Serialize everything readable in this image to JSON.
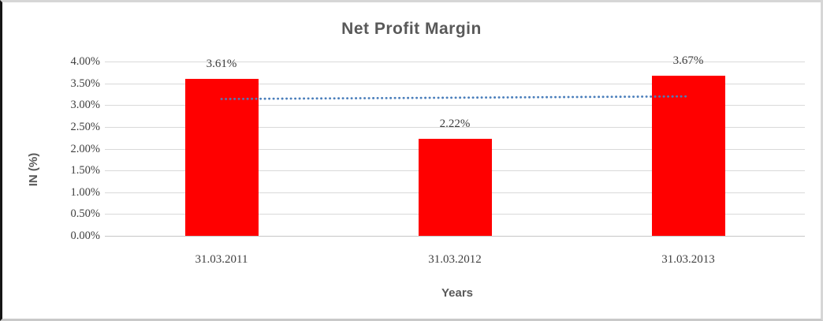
{
  "chart_data": {
    "type": "bar",
    "title": "Net Profit Margin",
    "xlabel": "Years",
    "ylabel": "IN (%)",
    "categories": [
      "31.03.2011",
      "31.03.2012",
      "31.03.2013"
    ],
    "values": [
      3.61,
      2.22,
      3.67
    ],
    "data_labels": [
      "3.61%",
      "2.22%",
      "3.67%"
    ],
    "y_ticks": [
      {
        "value": 4.0,
        "label": "4.00%"
      },
      {
        "value": 3.5,
        "label": "3.50%"
      },
      {
        "value": 3.0,
        "label": "3.00%"
      },
      {
        "value": 2.5,
        "label": "2.50%"
      },
      {
        "value": 2.0,
        "label": "2.00%"
      },
      {
        "value": 1.5,
        "label": "1.50%"
      },
      {
        "value": 1.0,
        "label": "1.00%"
      },
      {
        "value": 0.5,
        "label": "0.50%"
      },
      {
        "value": 0.0,
        "label": "0.00%"
      }
    ],
    "ylim": [
      0.0,
      4.0
    ],
    "grid": true,
    "legend": "none",
    "bar_color": "#ff0000",
    "gridline_color": "#d9d9d9",
    "axis_line_color": "#c6c6c6",
    "heading_text_color": "#595959",
    "tick_text_color": "#3f3f3f",
    "trendline": {
      "style": "dotted",
      "color": "#4a7ebb",
      "start_value": 3.14,
      "end_value": 3.2,
      "spans": "first bar center to last bar center"
    }
  }
}
